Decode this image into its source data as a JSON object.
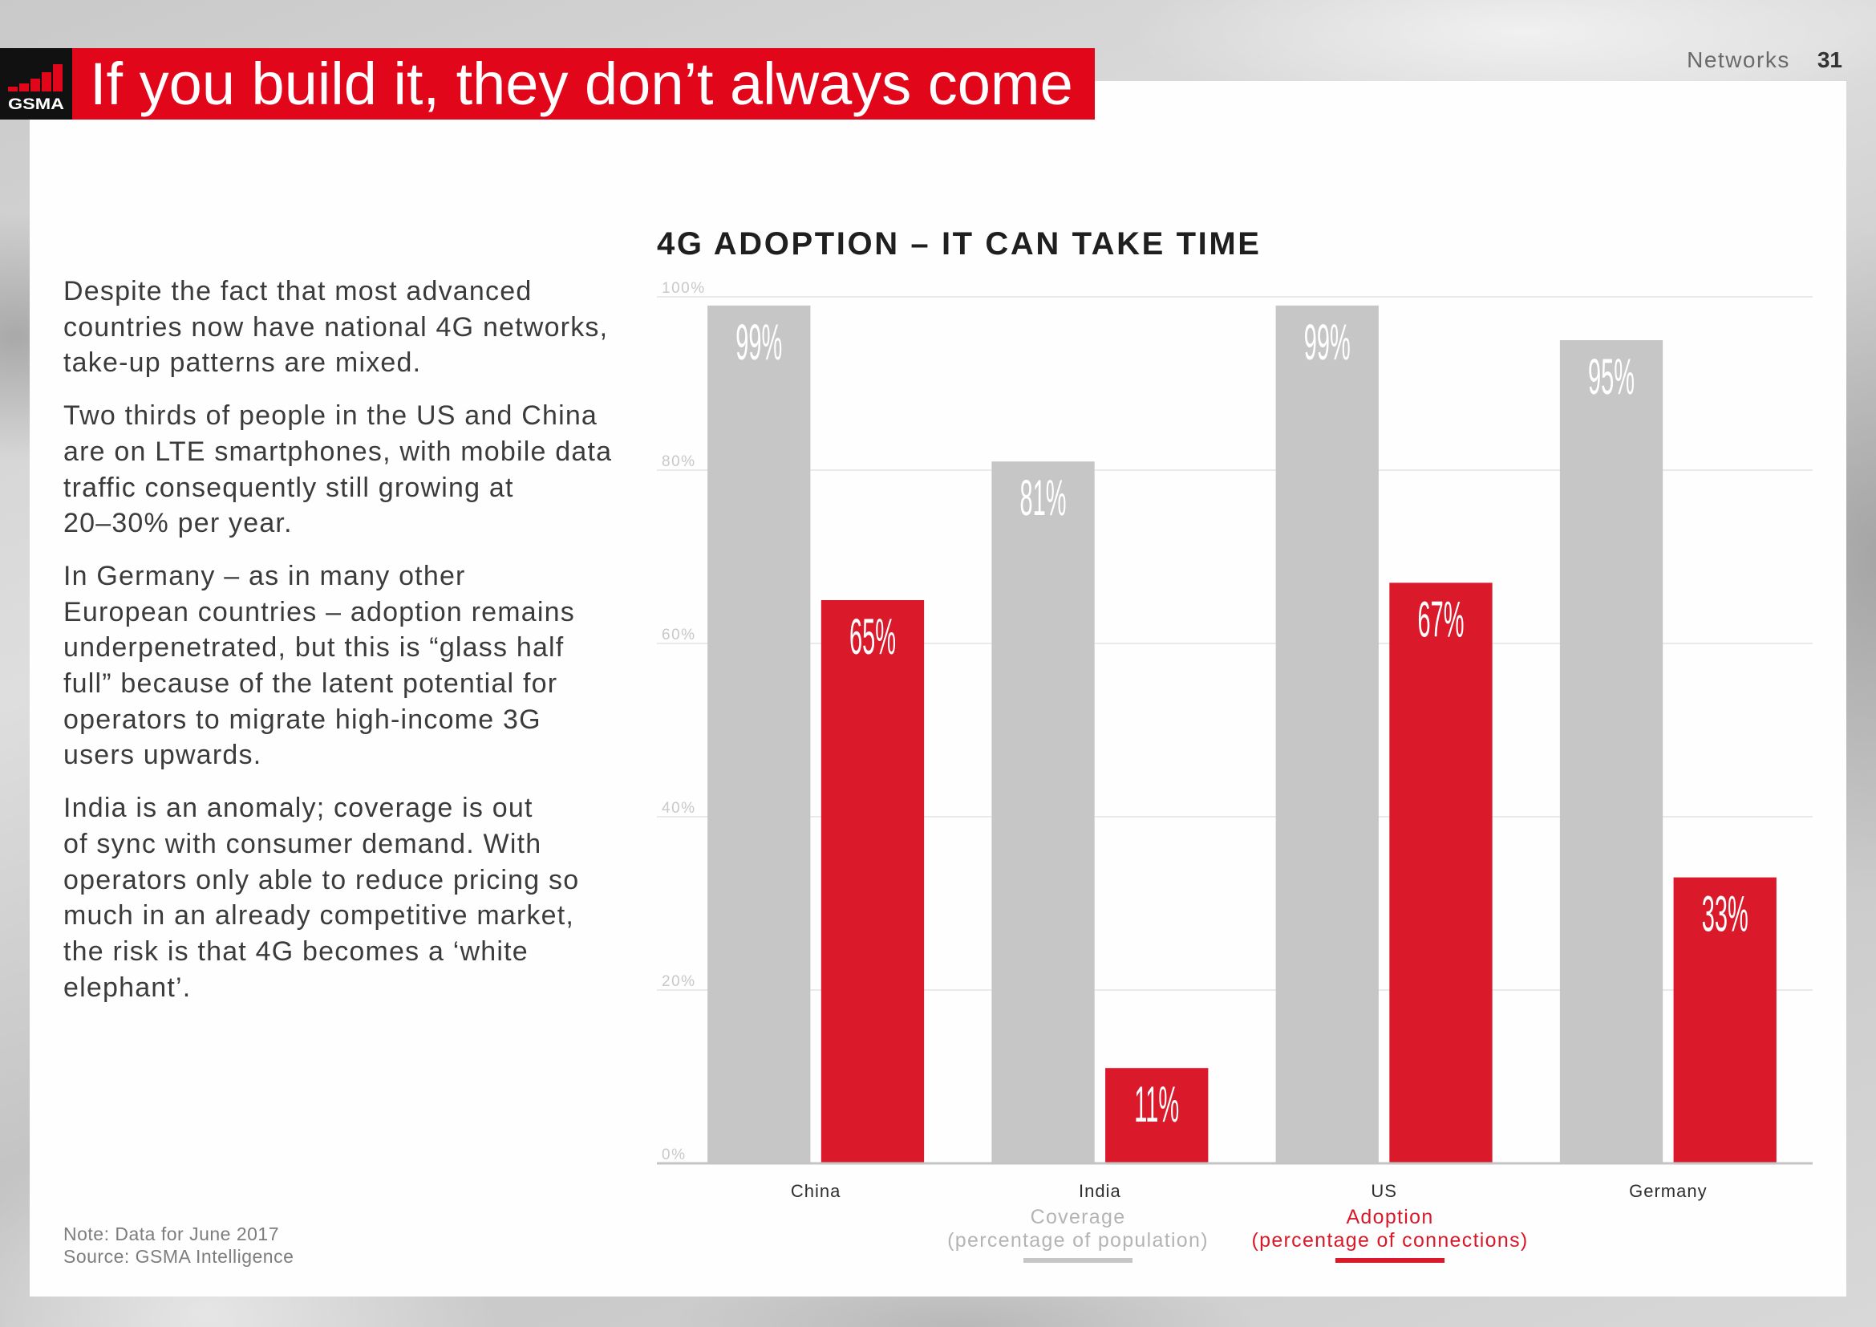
{
  "header": {
    "title": "If you build it, they don’t always come",
    "section": "Networks",
    "page_number": "31"
  },
  "logo": {
    "text": "GSMA"
  },
  "body": {
    "paragraphs": [
      [
        "Despite the fact that most advanced",
        "countries now have national 4G networks,",
        "take-up patterns are mixed."
      ],
      [
        "Two thirds of people in the US and China",
        "are on LTE smartphones, with mobile data",
        "traffic consequently still growing at",
        "20–30% per year."
      ],
      [
        "In Germany – as in many other",
        "European countries – adoption remains",
        "underpenetrated, but this is “glass half",
        "full” because of the latent potential for",
        "operators to migrate high-income 3G",
        "users upwards."
      ],
      [
        "India is an anomaly; coverage is out",
        "of sync with consumer demand. With",
        "operators only able to reduce pricing so",
        "much in an already competitive market,",
        "the risk is that 4G becomes a ‘white",
        "elephant’."
      ]
    ]
  },
  "footnotes": {
    "note": "Note: Data for June 2017",
    "source": "Source: GSMA Intelligence"
  },
  "colors": {
    "brand_red": "#e2061b",
    "logo_bg": "#111111",
    "text_dark": "#3b3b3b"
  },
  "chart_data": {
    "type": "bar",
    "title": "4G ADOPTION – IT CAN TAKE TIME",
    "categories": [
      "China",
      "India",
      "US",
      "Germany"
    ],
    "series": [
      {
        "name": "Coverage",
        "description": "(percentage of population)",
        "values": [
          99,
          81,
          99,
          95
        ],
        "labels": [
          "99%",
          "81%",
          "99%",
          "95%"
        ],
        "color": "#c6c6c6",
        "text_color": "#b4b4b4"
      },
      {
        "name": "Adoption",
        "description": "(percentage of connections)",
        "values": [
          65,
          11,
          67,
          33
        ],
        "labels": [
          "65%",
          "11%",
          "67%",
          "33%"
        ],
        "color": "#da1a2b",
        "text_color": "#d8192a"
      }
    ],
    "xlabel": "",
    "ylabel": "",
    "ylim": [
      0,
      100
    ],
    "yticks": [
      0,
      20,
      40,
      60,
      80,
      100
    ],
    "ytick_labels": [
      "0%",
      "20%",
      "40%",
      "60%",
      "80%",
      "100%"
    ],
    "grid": true,
    "legend": "bottom-center"
  }
}
